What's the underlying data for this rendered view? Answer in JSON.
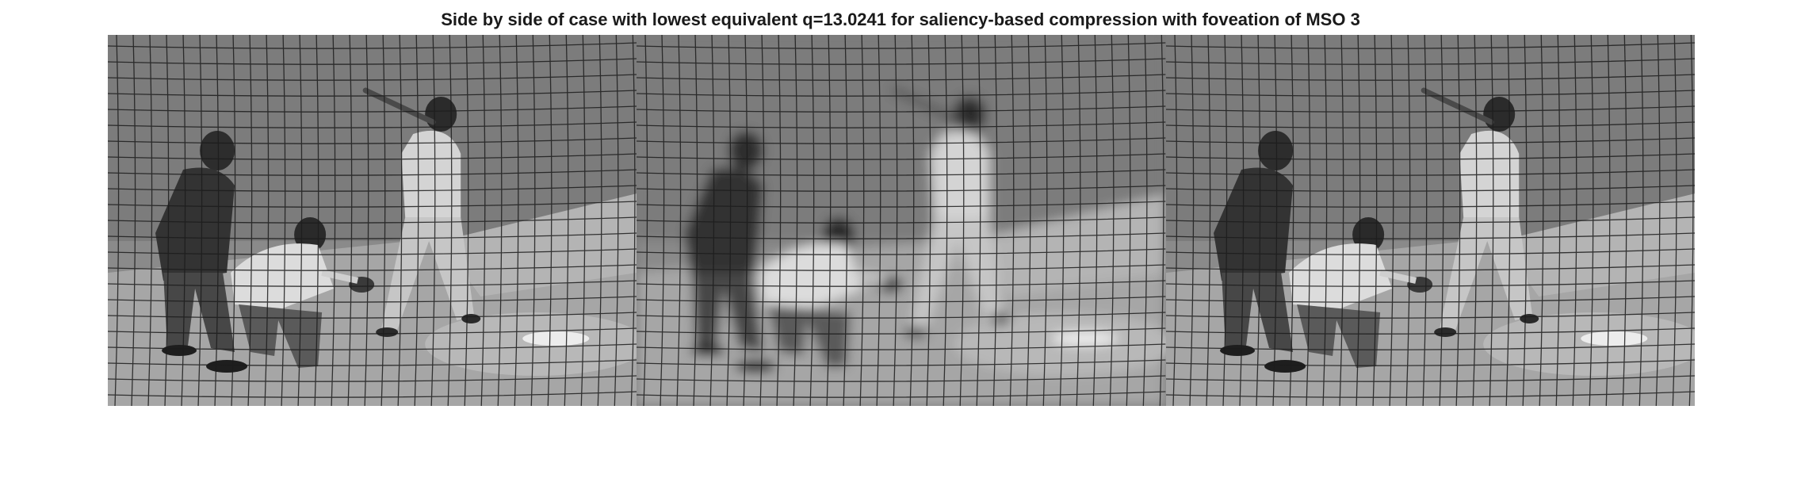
{
  "figure": {
    "title": "Side by side of case with lowest equivalent q=13.0241 for saliency-based compression with foveation of MSO 3"
  },
  "panels": [
    {
      "id": "original",
      "blur": 0
    },
    {
      "id": "foveated",
      "blur": 1
    },
    {
      "id": "compressed",
      "blur": 0
    }
  ],
  "scene": {
    "subject": "baseball pitch viewed through backstop netting",
    "figures": [
      "umpire",
      "catcher",
      "batter"
    ],
    "palette": "grayscale"
  }
}
